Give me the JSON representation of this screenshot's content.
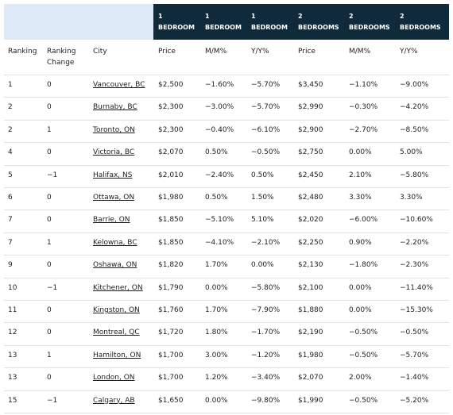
{
  "table": {
    "top_headers": [
      {
        "number": "1",
        "label": "BEDROOM"
      },
      {
        "number": "1",
        "label": "BEDROOM"
      },
      {
        "number": "1",
        "label": "BEDROOM"
      },
      {
        "number": "2",
        "label": "BEDROOMS"
      },
      {
        "number": "2",
        "label": "BEDROOMS"
      },
      {
        "number": "2",
        "label": "BEDROOMS"
      }
    ],
    "columns": [
      "Ranking",
      "Ranking Change",
      "City",
      "Price",
      "M/M%",
      "Y/Y%",
      "Price",
      "M/M%",
      "Y/Y%"
    ],
    "rows": [
      [
        "1",
        "0",
        "Vancouver, BC",
        "$2,500",
        "−1.60%",
        "−5.70%",
        "$3,450",
        "−1.10%",
        "−9.00%"
      ],
      [
        "2",
        "0",
        "Burnaby, BC",
        "$2,300",
        "−3.00%",
        "−5.70%",
        "$2,990",
        "−0.30%",
        "−4.20%"
      ],
      [
        "2",
        "1",
        "Toronto, ON",
        "$2,300",
        "−0.40%",
        "−6.10%",
        "$2,900",
        "−2.70%",
        "−8.50%"
      ],
      [
        "4",
        "0",
        "Victoria, BC",
        "$2,070",
        "0.50%",
        "−0.50%",
        "$2,750",
        "0.00%",
        "5.00%"
      ],
      [
        "5",
        "−1",
        "Halifax, NS",
        "$2,010",
        "−2.40%",
        "0.50%",
        "$2,450",
        "2.10%",
        "−5.80%"
      ],
      [
        "6",
        "0",
        "Ottawa, ON",
        "$1,980",
        "0.50%",
        "1.50%",
        "$2,480",
        "3.30%",
        "3.30%"
      ],
      [
        "7",
        "0",
        "Barrie, ON",
        "$1,850",
        "−5.10%",
        "5.10%",
        "$2,020",
        "−6.00%",
        "−10.60%"
      ],
      [
        "7",
        "1",
        "Kelowna, BC",
        "$1,850",
        "−4.10%",
        "−2.10%",
        "$2,250",
        "0.90%",
        "−2.20%"
      ],
      [
        "9",
        "0",
        "Oshawa, ON",
        "$1,820",
        "1.70%",
        "0.00%",
        "$2,130",
        "−1.80%",
        "−2.30%"
      ],
      [
        "10",
        "−1",
        "Kitchener, ON",
        "$1,790",
        "0.00%",
        "−5.80%",
        "$2,100",
        "0.00%",
        "−11.40%"
      ],
      [
        "11",
        "0",
        "Kingston, ON",
        "$1,760",
        "1.70%",
        "−7.90%",
        "$1,880",
        "0.00%",
        "−15.30%"
      ],
      [
        "12",
        "0",
        "Montreal, QC",
        "$1,720",
        "1.80%",
        "−1.70%",
        "$2,190",
        "−0.50%",
        "−0.50%"
      ],
      [
        "13",
        "1",
        "Hamilton, ON",
        "$1,700",
        "3.00%",
        "−1.20%",
        "$1,980",
        "−0.50%",
        "−5.70%"
      ],
      [
        "13",
        "0",
        "London, ON",
        "$1,700",
        "1.20%",
        "−3.40%",
        "$2,070",
        "2.00%",
        "−1.40%"
      ],
      [
        "15",
        "−1",
        "Calgary, AB",
        "$1,650",
        "0.00%",
        "−9.80%",
        "$1,990",
        "−0.50%",
        "−5.20%"
      ]
    ]
  }
}
